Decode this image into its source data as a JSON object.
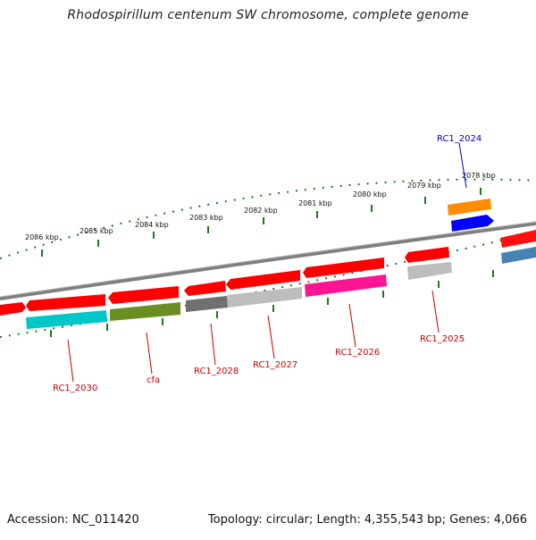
{
  "header": {
    "title": "Rhodospirillum centenum SW chromosome, complete genome"
  },
  "footer": {
    "accession": "Accession: NC_011420",
    "summary": "Topology: circular; Length: 4,355,543 bp; Genes: 4,066"
  },
  "ruler": {
    "tick_labels": [
      "2086 kbp",
      "2085 kbp",
      "2084 kbp",
      "2083 kbp",
      "2082 kbp",
      "2081 kbp",
      "2080 kbp",
      "2079 kbp",
      "2078 kbp"
    ],
    "color": "#1e7a1e"
  },
  "genes": {
    "labels": [
      "RC1_2024",
      "RC1_2025",
      "RC1_2026",
      "RC1_2027",
      "RC1_2028",
      "cfa",
      "RC1_2030"
    ],
    "label_colors": {
      "forward": "#0000cc",
      "reverse": "#cc0000"
    }
  },
  "colors": {
    "backbone": "#7f7f7f",
    "cds_forward": "#ff0000",
    "cds_reverse": "#ff0000",
    "feature_cyan": "#00c8c8",
    "feature_olive": "#6b8e23",
    "feature_darkgray": "#707070",
    "feature_lightgray": "#bdbdbd",
    "feature_magenta": "#ff1493",
    "feature_orange": "#ff8c00",
    "feature_blue": "#0000ff",
    "feature_steelblue": "#4682b4"
  }
}
